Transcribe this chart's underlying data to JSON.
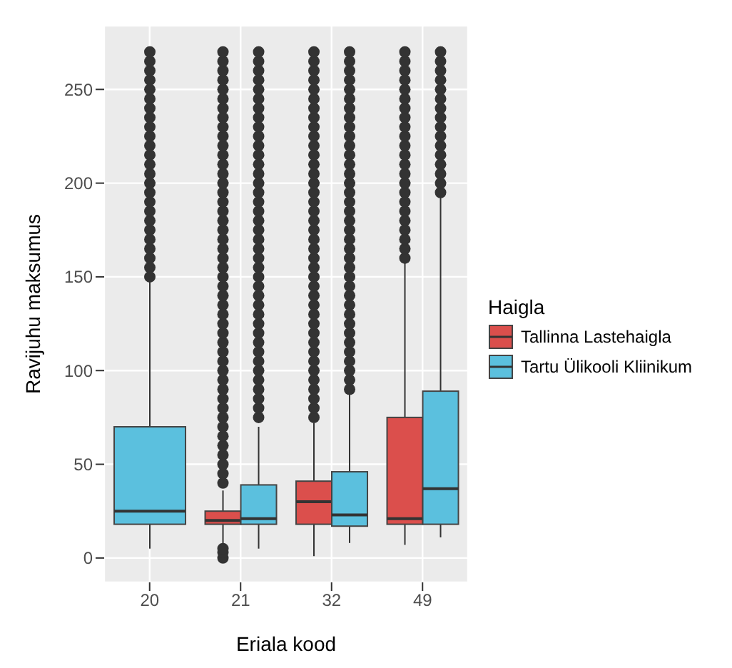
{
  "chart_data": {
    "type": "box",
    "xlabel": "Eriala kood",
    "ylabel": "Ravijuhu maksumus",
    "legend_title": "Haigla",
    "categories": [
      "20",
      "21",
      "32",
      "49"
    ],
    "ylim": [
      -13,
      284
    ],
    "yticks": [
      0,
      50,
      100,
      150,
      200,
      250
    ],
    "grid": true,
    "legend": "right",
    "series": [
      {
        "name": "Tallinna Lastehaigla",
        "color": "#db4f4c",
        "boxes": [
          null,
          {
            "low": 7,
            "q1": 18,
            "median": 20,
            "q3": 25,
            "high": 36,
            "outliers": [
              0,
              3,
              5,
              40,
              45,
              50,
              55,
              60,
              65,
              70,
              75,
              80,
              85,
              90,
              95,
              100,
              105,
              110,
              115,
              120,
              125,
              130,
              135,
              140,
              145,
              150,
              155,
              160,
              165,
              170,
              175,
              180,
              185,
              190,
              195,
              200,
              205,
              210,
              215,
              220,
              225,
              230,
              235,
              240,
              245,
              250,
              255,
              260,
              265,
              270
            ]
          },
          {
            "low": 1,
            "q1": 18,
            "median": 30,
            "q3": 41,
            "high": 72,
            "outliers": [
              75,
              80,
              85,
              90,
              95,
              100,
              105,
              110,
              115,
              120,
              125,
              130,
              135,
              140,
              145,
              150,
              155,
              160,
              165,
              170,
              175,
              180,
              185,
              190,
              195,
              200,
              205,
              210,
              215,
              220,
              225,
              230,
              235,
              240,
              245,
              250,
              255,
              260,
              265,
              270
            ]
          },
          {
            "low": 7,
            "q1": 18,
            "median": 21,
            "q3": 75,
            "high": 158,
            "outliers": [
              160,
              165,
              170,
              175,
              180,
              185,
              190,
              195,
              200,
              205,
              210,
              215,
              220,
              225,
              230,
              235,
              240,
              245,
              250,
              255,
              260,
              265,
              270
            ]
          }
        ]
      },
      {
        "name": "Tartu Ülikooli Kliinikum",
        "color": "#5bc0de",
        "boxes": [
          {
            "low": 5,
            "q1": 18,
            "median": 25,
            "q3": 70,
            "high": 149,
            "outliers": [
              150,
              155,
              160,
              165,
              170,
              175,
              180,
              185,
              190,
              195,
              200,
              205,
              210,
              215,
              220,
              225,
              230,
              235,
              240,
              245,
              250,
              255,
              260,
              265,
              270
            ]
          },
          {
            "low": 5,
            "q1": 18,
            "median": 21,
            "q3": 39,
            "high": 70,
            "outliers": [
              75,
              80,
              85,
              90,
              95,
              100,
              105,
              110,
              115,
              120,
              125,
              130,
              135,
              140,
              145,
              150,
              155,
              160,
              165,
              170,
              175,
              180,
              185,
              190,
              195,
              200,
              205,
              210,
              215,
              220,
              225,
              230,
              235,
              240,
              245,
              250,
              255,
              260,
              265,
              270
            ]
          },
          {
            "low": 8,
            "q1": 17,
            "median": 23,
            "q3": 46,
            "high": 88,
            "outliers": [
              90,
              95,
              100,
              105,
              110,
              115,
              120,
              125,
              130,
              135,
              140,
              145,
              150,
              155,
              160,
              165,
              170,
              175,
              180,
              185,
              190,
              195,
              200,
              205,
              210,
              215,
              220,
              225,
              230,
              235,
              240,
              245,
              250,
              255,
              260,
              265,
              270
            ]
          },
          {
            "low": 11,
            "q1": 18,
            "median": 37,
            "q3": 89,
            "high": 194,
            "outliers": [
              195,
              200,
              205,
              210,
              215,
              220,
              225,
              230,
              235,
              240,
              245,
              250,
              255,
              260,
              265,
              270
            ]
          }
        ]
      }
    ]
  }
}
